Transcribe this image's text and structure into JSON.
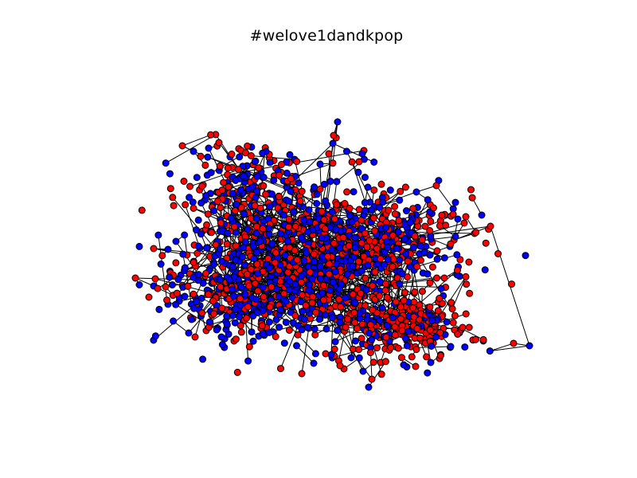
{
  "figure": {
    "title": "#welove1dandkpop"
  },
  "graph": {
    "node_colors": [
      "#0000ff",
      "#ff0000"
    ],
    "edge_color": "#000000",
    "node_outline_color": "#000000",
    "node_count": 1700
  }
}
